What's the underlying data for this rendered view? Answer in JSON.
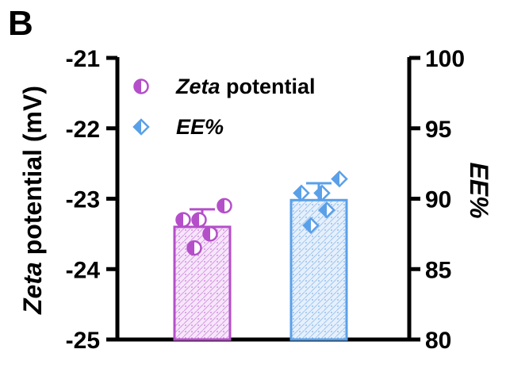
{
  "panel_label": "B",
  "chart_data": {
    "type": "bar",
    "categories": [
      "",
      ""
    ],
    "y_left": {
      "label_italic": "Zeta",
      "label_rest": " potential (mV)",
      "range": [
        -25,
        -21
      ],
      "ticks": [
        -21,
        -22,
        -23,
        -24,
        -25
      ],
      "tick_labels": [
        "-21",
        "-22",
        "-23",
        "-24",
        "-25"
      ]
    },
    "y_right": {
      "label": "EE%",
      "range": [
        80,
        100
      ],
      "ticks": [
        100,
        95,
        90,
        85,
        80
      ],
      "tick_labels": [
        "100",
        "95",
        "90",
        "85",
        "80"
      ]
    },
    "series": [
      {
        "name_italic": "Zeta",
        "name_rest": " potential",
        "axis": "left",
        "color": "#b44fc9",
        "mean": -23.4,
        "sd": 0.25,
        "points": [
          -23.1,
          -23.3,
          -23.3,
          -23.5,
          -23.7
        ]
      },
      {
        "name_italic": "EE%",
        "name_rest": "",
        "axis": "right",
        "color": "#5aa0e8",
        "mean": 89.9,
        "sd": 1.2,
        "points": [
          91.4,
          90.4,
          90.4,
          89.2,
          88.1
        ]
      }
    ]
  }
}
